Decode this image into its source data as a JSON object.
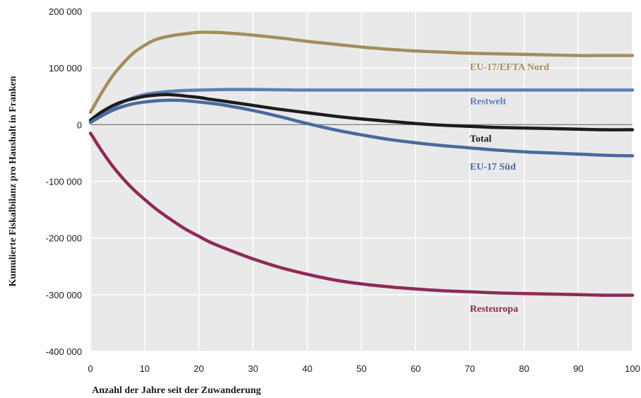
{
  "chart_data": {
    "type": "line",
    "title": "",
    "xlabel": "Anzahl der Jahre seit der Zuwanderung",
    "ylabel": "Kumulierte Fiskalbilanz pro Haushalt in Franken",
    "xlim": [
      0,
      100
    ],
    "ylim": [
      -400000,
      200000
    ],
    "x_ticks": [
      0,
      10,
      20,
      30,
      40,
      50,
      60,
      70,
      80,
      90,
      100
    ],
    "x_tick_labels": [
      "0",
      "10",
      "20",
      "30",
      "40",
      "50",
      "60",
      "70",
      "80",
      "90",
      "100"
    ],
    "y_ticks": [
      200000,
      100000,
      0,
      -100000,
      -200000,
      -300000,
      -400000
    ],
    "y_tick_labels": [
      "200 000",
      "100 000",
      "0",
      "-100 000",
      "-200 000",
      "-300 000",
      "-400 000"
    ],
    "grid": true,
    "zero_line": true,
    "background_color": "#e9e9e9",
    "grid_color": "#ffffff",
    "series": [
      {
        "name": "EU-17/EFTA Nord",
        "color": "#a38e5e",
        "x": [
          0,
          2,
          4,
          6,
          8,
          10,
          12,
          15,
          18,
          20,
          22,
          25,
          30,
          35,
          40,
          45,
          50,
          55,
          60,
          65,
          70,
          75,
          80,
          85,
          90,
          95,
          100
        ],
        "y": [
          22000,
          55000,
          85000,
          108000,
          127000,
          140000,
          150000,
          157000,
          161000,
          163000,
          163000,
          162000,
          158000,
          153000,
          147000,
          142000,
          137000,
          133000,
          130000,
          128000,
          126000,
          125000,
          124000,
          123000,
          122000,
          122000,
          122000
        ]
      },
      {
        "name": "Restwelt",
        "color": "#5c7fb4",
        "x": [
          0,
          2,
          4,
          6,
          8,
          10,
          12,
          14,
          16,
          18,
          20,
          22,
          25,
          30,
          35,
          40,
          50,
          60,
          70,
          80,
          90,
          100
        ],
        "y": [
          5000,
          18000,
          30000,
          40000,
          48000,
          53000,
          56000,
          58000,
          59500,
          60500,
          61000,
          61500,
          62000,
          62000,
          61500,
          61000,
          61000,
          61000,
          61000,
          61000,
          61000,
          61000
        ]
      },
      {
        "name": "Total",
        "color": "#1c1c1c",
        "x": [
          0,
          2,
          4,
          6,
          8,
          10,
          12,
          14,
          16,
          18,
          20,
          22,
          25,
          30,
          35,
          40,
          45,
          50,
          55,
          60,
          65,
          70,
          75,
          80,
          85,
          90,
          95,
          100
        ],
        "y": [
          8000,
          22000,
          33000,
          41000,
          46000,
          50000,
          52000,
          53000,
          52000,
          50000,
          48000,
          45000,
          41000,
          34000,
          27000,
          21000,
          15000,
          10000,
          6000,
          2000,
          -1000,
          -3000,
          -5000,
          -6000,
          -7000,
          -8000,
          -9000,
          -9000
        ]
      },
      {
        "name": "EU-17 Süd",
        "color": "#4a6a9e",
        "x": [
          0,
          2,
          4,
          6,
          8,
          10,
          12,
          14,
          16,
          18,
          20,
          22,
          25,
          30,
          35,
          40,
          45,
          50,
          55,
          60,
          65,
          70,
          75,
          80,
          85,
          90,
          95,
          100
        ],
        "y": [
          4000,
          15000,
          25000,
          32000,
          37000,
          40000,
          42000,
          43000,
          43000,
          42000,
          40000,
          38000,
          34000,
          25000,
          14000,
          2000,
          -9000,
          -18000,
          -26000,
          -32000,
          -37000,
          -41000,
          -45000,
          -48000,
          -50000,
          -52000,
          -54000,
          -55000
        ]
      },
      {
        "name": "Resteuropa",
        "color": "#8e2a58",
        "x": [
          0,
          2,
          4,
          6,
          8,
          10,
          12,
          14,
          16,
          18,
          20,
          22,
          25,
          30,
          35,
          40,
          45,
          50,
          55,
          60,
          65,
          70,
          75,
          80,
          85,
          90,
          95,
          100
        ],
        "y": [
          -15000,
          -45000,
          -72000,
          -95000,
          -115000,
          -132000,
          -148000,
          -162000,
          -175000,
          -187000,
          -197000,
          -207000,
          -219000,
          -237000,
          -252000,
          -264000,
          -274000,
          -281000,
          -286000,
          -290000,
          -293000,
          -295000,
          -297000,
          -298000,
          -299000,
          -300000,
          -301000,
          -301000
        ]
      }
    ],
    "annotations": [
      {
        "text": "EU-17/EFTA Nord",
        "x": 70,
        "y": 103000,
        "color": "#a38e5e"
      },
      {
        "text": "Restwelt",
        "x": 70,
        "y": 42000,
        "color": "#5c7fb4"
      },
      {
        "text": "Total",
        "x": 70,
        "y": -24000,
        "color": "#1c1c1c"
      },
      {
        "text": "EU-17 Süd",
        "x": 70,
        "y": -73000,
        "color": "#4a6a9e"
      },
      {
        "text": "Resteuropa",
        "x": 70,
        "y": -324000,
        "color": "#8e2a58"
      }
    ]
  }
}
